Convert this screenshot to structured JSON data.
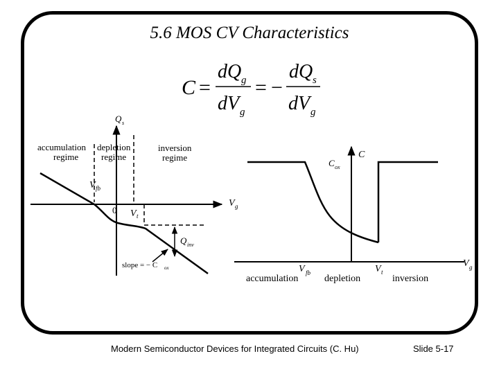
{
  "slide": {
    "title": "5.6   MOS CV Characteristics",
    "footer_left": "Modern Semiconductor Devices for Integrated Circuits  (C. Hu)",
    "footer_right": "Slide 5-17"
  },
  "equation": {
    "lhs": "C",
    "equals": "=",
    "num1": "dQ",
    "num1_sub": "g",
    "den1": "dV",
    "den1_sub": "g",
    "equals2": "=",
    "minus": "−",
    "num2": "dQ",
    "num2_sub": "s",
    "den2": "dV",
    "den2_sub": "g"
  },
  "left_diagram": {
    "y_axis": "Q",
    "y_axis_sub": "s",
    "x_axis": "V",
    "x_axis_sub": "g",
    "origin": "0",
    "vfb": "V",
    "vfb_sub": "fb",
    "vt": "V",
    "vt_sub": "t",
    "qinv": "Q",
    "qinv_sub": "inv",
    "accumulation_1": "accumulation",
    "accumulation_2": "regime",
    "depletion_1": "depletion",
    "depletion_2": "regime",
    "inversion_1": "inversion",
    "inversion_2": "regime",
    "slope": "slope = − C",
    "slope_sub": "ox"
  },
  "right_diagram": {
    "y_axis": "C",
    "cox": "C",
    "cox_sub": "ox",
    "x_axis": "V",
    "x_axis_sub": "g",
    "vfb": "V",
    "vfb_sub": "fb",
    "vt": "V",
    "vt_sub": "t",
    "accumulation": "accumulation",
    "depletion": "depletion",
    "inversion": "inversion"
  }
}
